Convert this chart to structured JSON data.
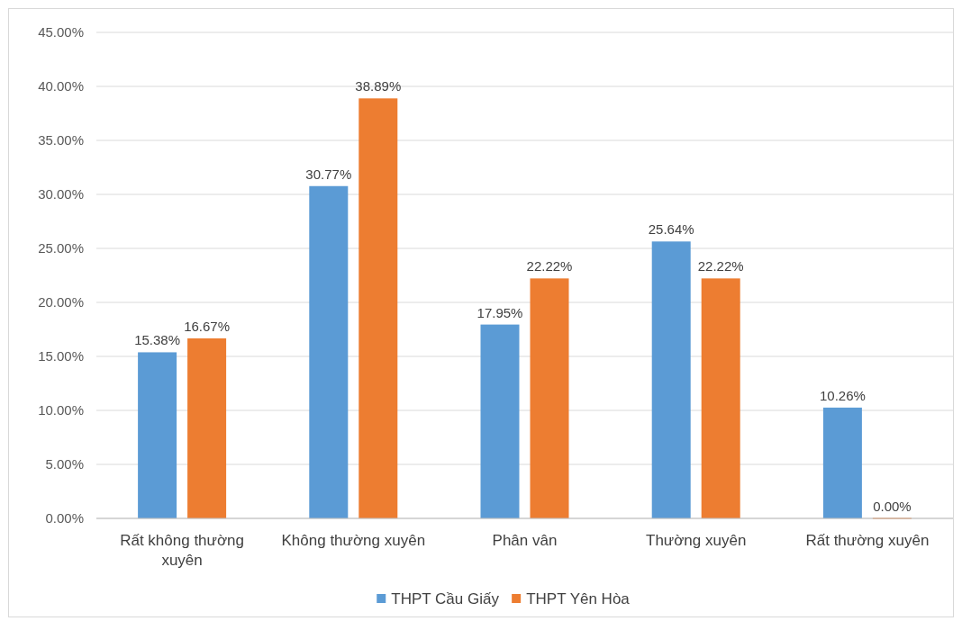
{
  "chart_data": {
    "type": "bar",
    "categories": [
      "Rất không thường xuyên",
      "Không thường xuyên",
      "Phân vân",
      "Thường xuyên",
      "Rất thường xuyên"
    ],
    "series": [
      {
        "name": "THPT Cầu Giấy",
        "color": "#5b9bd5",
        "values": [
          15.38,
          30.77,
          17.95,
          25.64,
          10.26
        ],
        "value_labels": [
          "15.38%",
          "30.77%",
          "17.95%",
          "25.64%",
          "10.26%"
        ]
      },
      {
        "name": "THPT Yên Hòa",
        "color": "#ed7d31",
        "values": [
          16.67,
          38.89,
          22.22,
          22.22,
          0
        ],
        "value_labels": [
          "16.67%",
          "38.89%",
          "22.22%",
          "22.22%",
          "0.00%"
        ]
      }
    ],
    "ylim": [
      0,
      45
    ],
    "yticks": [
      {
        "value": 0,
        "label": "0.00%"
      },
      {
        "value": 5,
        "label": "5.00%"
      },
      {
        "value": 10,
        "label": "10.00%"
      },
      {
        "value": 15,
        "label": "15.00%"
      },
      {
        "value": 20,
        "label": "20.00%"
      },
      {
        "value": 25,
        "label": "25.00%"
      },
      {
        "value": 30,
        "label": "30.00%"
      },
      {
        "value": 35,
        "label": "35.00%"
      },
      {
        "value": 40,
        "label": "40.00%"
      },
      {
        "value": 45,
        "label": "45.00%"
      }
    ],
    "grid": "y",
    "legend": "bottom"
  }
}
